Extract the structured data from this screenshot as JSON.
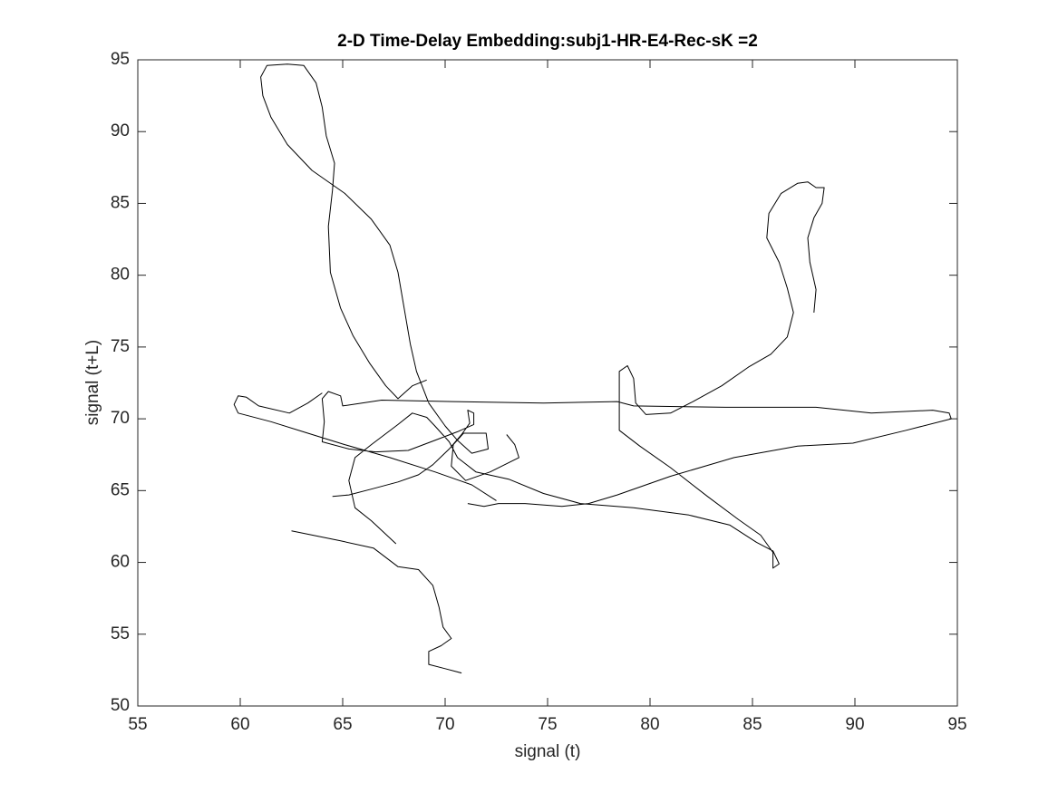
{
  "chart_data": {
    "type": "line",
    "title": "2-D Time-Delay Embedding:subj1-HR-E4-Rec-sK =2",
    "x_label": "signal (t)",
    "y_label": "signal (t+L)",
    "color": "#000000",
    "xlim": [
      55,
      95
    ],
    "ylim": [
      50,
      95
    ],
    "xticks": [
      55,
      60,
      65,
      70,
      75,
      80,
      85,
      90,
      95
    ],
    "yticks": [
      50,
      55,
      60,
      65,
      70,
      75,
      80,
      85,
      90,
      95
    ],
    "grid": false,
    "box": true,
    "x": [
      62.5,
      64.9,
      66.5,
      67.7,
      68.7,
      69.4,
      69.7,
      69.9,
      70.3,
      69.8,
      69.2,
      69.2,
      70.0,
      70.8,
      null,
      64.5,
      65.3,
      66.4,
      67.7,
      68.7,
      69.4,
      70.2,
      70.8,
      71.2,
      71.1,
      71.4,
      71.4,
      70.6,
      69.5,
      68.2,
      66.6,
      65.3,
      64.0,
      64.1,
      64.0,
      64.3,
      64.9,
      65.0,
      66.9,
      70.4,
      74.8,
      78.4,
      79.2,
      83.7,
      88.1,
      90.8,
      93.8,
      94.6,
      94.7,
      92.5,
      89.9,
      87.2,
      84.1,
      81.0,
      78.4,
      77.0,
      75.7,
      73.9,
      72.6,
      71.9,
      71.1,
      null,
      64.0,
      63.3,
      62.4,
      60.9,
      60.3,
      59.9,
      59.7,
      59.9,
      61.5,
      63.3,
      65.1,
      67.3,
      69.5,
      71.3,
      72.5,
      null,
      67.6,
      66.4,
      65.6,
      65.3,
      65.6,
      66.4,
      67.7,
      68.4,
      69.1,
      69.5,
      70.2,
      70.6,
      71.5,
      73.1,
      74.8,
      76.6,
      79.2,
      81.9,
      83.9,
      85.2,
      86.0,
      86.3,
      86.0,
      86.0,
      85.4,
      84.3,
      82.8,
      81.0,
      79.5,
      78.5,
      78.5,
      78.9,
      79.2,
      79.3,
      79.8,
      81.0,
      82.1,
      83.5,
      84.8,
      85.9,
      86.7,
      87.0,
      86.7,
      86.3,
      85.7,
      85.8,
      86.4,
      87.2,
      87.7,
      88.1,
      88.5,
      88.4,
      88.0,
      87.7,
      87.8,
      88.1,
      88.0,
      null,
      69.1,
      68.4,
      67.7,
      67.1,
      66.3,
      65.5,
      64.9,
      64.4,
      64.3,
      64.5,
      64.6,
      64.2,
      64.0,
      63.7,
      63.1,
      62.3,
      61.3,
      61.0,
      61.1,
      61.5,
      62.3,
      63.5,
      65.1,
      66.4,
      67.3,
      67.7,
      68.0,
      68.3,
      68.6,
      69.2,
      70.0,
      70.6,
      71.3,
      72.1,
      72.0,
      70.9,
      70.4,
      70.3,
      71.0,
      72.2,
      73.6,
      73.4,
      73.0
    ],
    "values": [
      62.2,
      61.5,
      61.0,
      59.7,
      59.5,
      58.4,
      56.9,
      55.5,
      54.7,
      54.2,
      53.8,
      52.9,
      52.6,
      52.3,
      null,
      64.6,
      64.7,
      65.1,
      65.6,
      66.1,
      66.8,
      67.9,
      68.9,
      69.7,
      70.6,
      70.4,
      69.6,
      69.1,
      68.5,
      67.8,
      67.7,
      67.9,
      68.4,
      69.8,
      71.4,
      71.9,
      71.6,
      70.9,
      71.3,
      71.2,
      71.1,
      71.2,
      70.9,
      70.8,
      70.8,
      70.4,
      70.6,
      70.4,
      70.0,
      69.2,
      68.3,
      68.1,
      67.3,
      66.0,
      64.7,
      64.1,
      63.9,
      64.1,
      64.1,
      63.9,
      64.1,
      null,
      71.8,
      71.1,
      70.4,
      70.9,
      71.5,
      71.6,
      71.0,
      70.4,
      69.8,
      69.0,
      68.2,
      67.3,
      66.3,
      65.4,
      64.3,
      null,
      61.3,
      62.9,
      63.8,
      65.7,
      67.3,
      68.2,
      69.6,
      70.4,
      70.1,
      69.5,
      68.4,
      67.3,
      66.3,
      65.8,
      64.8,
      64.1,
      63.8,
      63.3,
      62.6,
      61.4,
      60.8,
      59.9,
      59.6,
      60.7,
      61.9,
      63.0,
      64.6,
      66.6,
      68.1,
      69.2,
      73.3,
      73.7,
      72.8,
      71.1,
      70.3,
      70.4,
      71.2,
      72.3,
      73.6,
      74.5,
      75.7,
      77.4,
      79.1,
      80.9,
      82.6,
      84.3,
      85.7,
      86.4,
      86.5,
      86.1,
      86.1,
      85.0,
      84.0,
      82.6,
      80.9,
      79.0,
      77.4,
      null,
      72.7,
      72.3,
      71.4,
      72.3,
      73.9,
      75.8,
      77.7,
      80.2,
      83.4,
      85.9,
      87.8,
      89.7,
      91.7,
      93.4,
      94.6,
      94.7,
      94.6,
      93.8,
      92.5,
      91.0,
      89.1,
      87.3,
      85.7,
      83.9,
      82.1,
      80.2,
      77.7,
      75.2,
      73.3,
      71.1,
      69.5,
      68.5,
      67.6,
      67.9,
      69.0,
      69.0,
      68.2,
      66.7,
      65.7,
      66.3,
      67.3,
      68.2,
      68.9
    ]
  }
}
